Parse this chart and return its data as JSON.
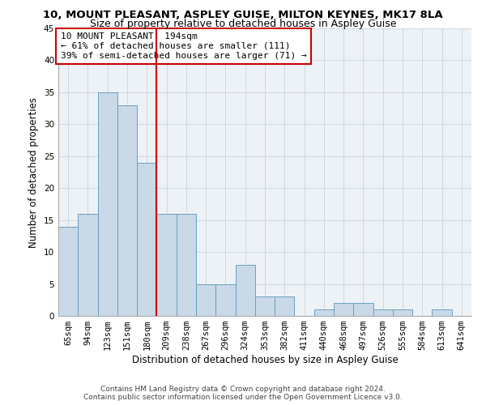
{
  "title": "10, MOUNT PLEASANT, ASPLEY GUISE, MILTON KEYNES, MK17 8LA",
  "subtitle": "Size of property relative to detached houses in Aspley Guise",
  "xlabel": "Distribution of detached houses by size in Aspley Guise",
  "ylabel": "Number of detached properties",
  "footnote1": "Contains HM Land Registry data © Crown copyright and database right 2024.",
  "footnote2": "Contains public sector information licensed under the Open Government Licence v3.0.",
  "annotation_line1": "10 MOUNT PLEASANT: 194sqm",
  "annotation_line2": "← 61% of detached houses are smaller (111)",
  "annotation_line3": "39% of semi-detached houses are larger (71) →",
  "bar_color": "#c9d9e8",
  "bar_edge_color": "#6a9fc0",
  "vline_color": "#cc0000",
  "annotation_box_edgecolor": "#cc0000",
  "grid_color": "#d0d8e0",
  "bg_color": "#edf2f7",
  "categories": [
    "65sqm",
    "94sqm",
    "123sqm",
    "151sqm",
    "180sqm",
    "209sqm",
    "238sqm",
    "267sqm",
    "296sqm",
    "324sqm",
    "353sqm",
    "382sqm",
    "411sqm",
    "440sqm",
    "468sqm",
    "497sqm",
    "526sqm",
    "555sqm",
    "584sqm",
    "613sqm",
    "641sqm"
  ],
  "values": [
    14,
    16,
    35,
    33,
    24,
    16,
    16,
    5,
    5,
    8,
    3,
    3,
    0,
    1,
    2,
    2,
    1,
    1,
    0,
    1,
    0
  ],
  "ylim": [
    0,
    45
  ],
  "yticks": [
    0,
    5,
    10,
    15,
    20,
    25,
    30,
    35,
    40,
    45
  ],
  "vline_x_index": 4.5,
  "title_fontsize": 9.5,
  "subtitle_fontsize": 9,
  "ylabel_fontsize": 8.5,
  "xlabel_fontsize": 8.5,
  "tick_fontsize": 7.5,
  "annotation_fontsize": 8,
  "footnote_fontsize": 6.5
}
